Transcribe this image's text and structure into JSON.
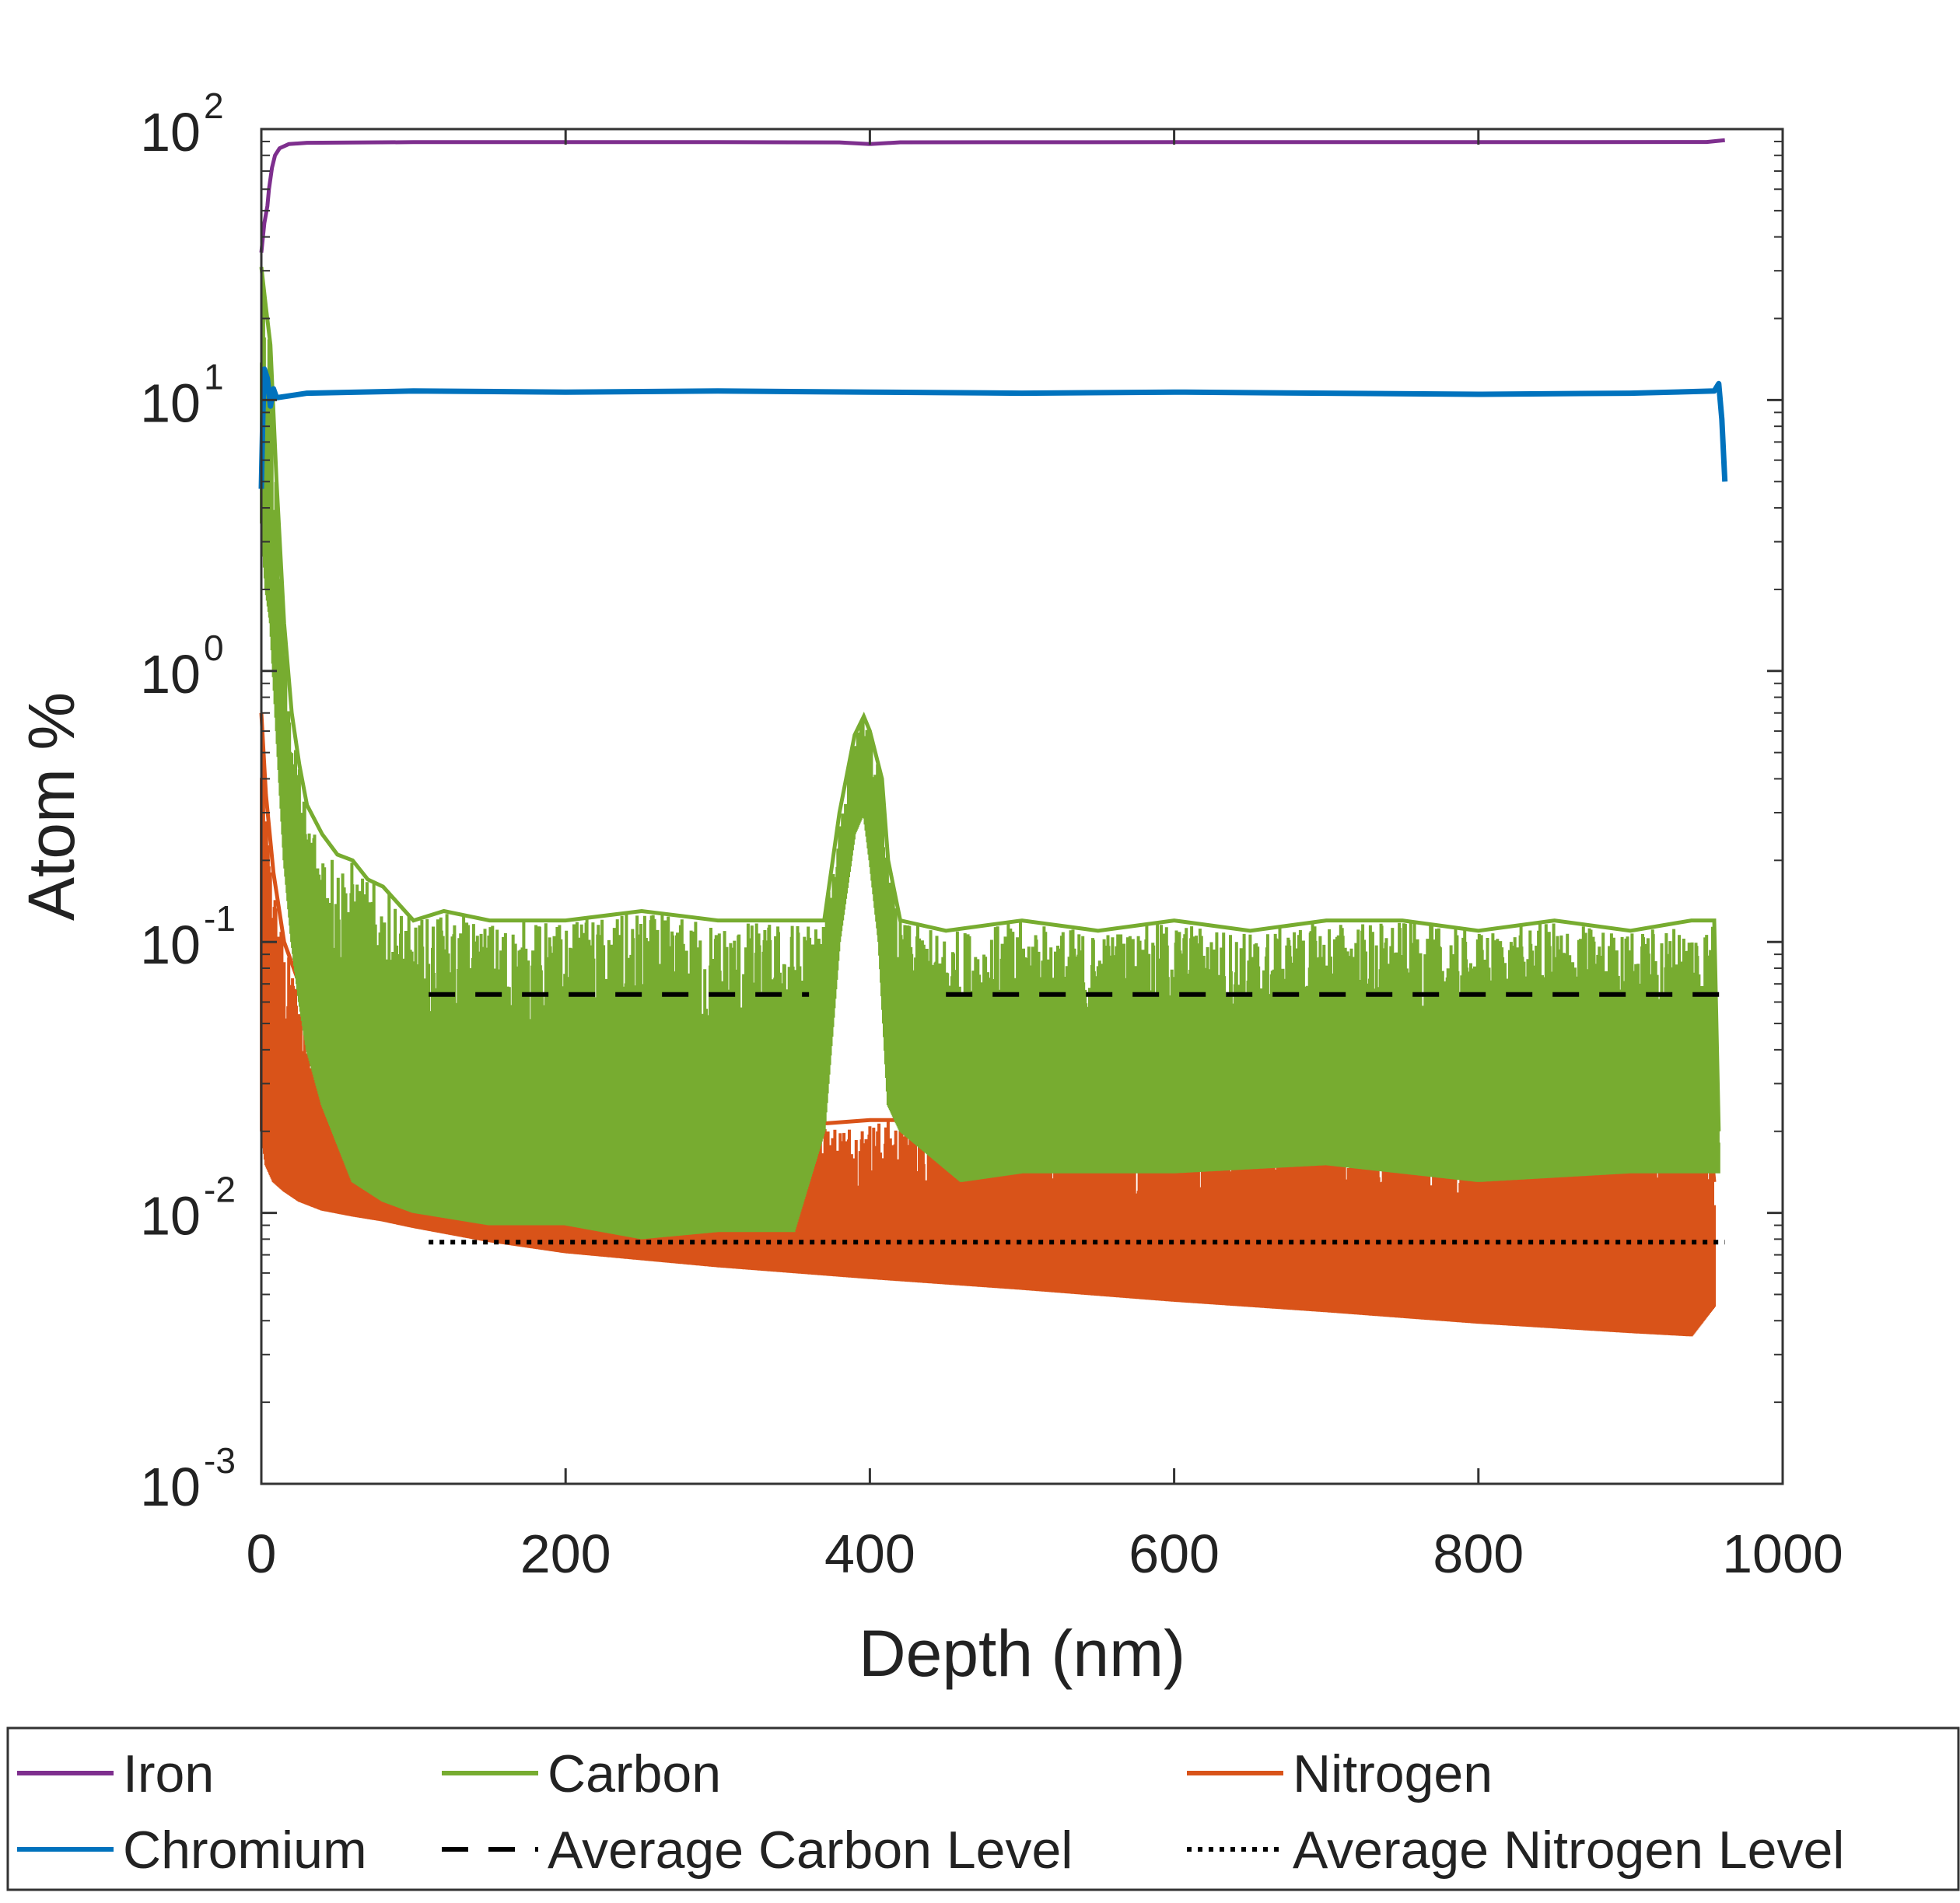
{
  "chart_data": {
    "type": "line",
    "title": "",
    "xlabel": "Depth (nm)",
    "ylabel": "Atom %",
    "xlim": [
      0,
      1000
    ],
    "ylim": [
      0.001,
      100
    ],
    "yscale": "log",
    "x_ticks": [
      0,
      200,
      400,
      600,
      800,
      1000
    ],
    "x_tick_labels": [
      "0",
      "200",
      "400",
      "600",
      "800",
      "1000"
    ],
    "y_ticks": [
      {
        "value": 100,
        "base": "10",
        "exp": "2"
      },
      {
        "value": 10,
        "base": "10",
        "exp": "1"
      },
      {
        "value": 1,
        "base": "10",
        "exp": "0"
      },
      {
        "value": 0.1,
        "base": "10",
        "exp": "-1"
      },
      {
        "value": 0.01,
        "base": "10",
        "exp": "-2"
      },
      {
        "value": 0.001,
        "base": "10",
        "exp": "-3"
      }
    ],
    "grid": false,
    "legend_position": "bottom, outside",
    "series": [
      {
        "name": "Iron",
        "color": "#7E2F8E",
        "style": "solid",
        "points": [
          [
            0,
            35
          ],
          [
            2,
            45
          ],
          [
            4,
            52
          ],
          [
            5,
            60
          ],
          [
            7,
            72
          ],
          [
            9,
            80
          ],
          [
            12,
            85
          ],
          [
            18,
            88
          ],
          [
            30,
            89
          ],
          [
            100,
            89.5
          ],
          [
            300,
            89.5
          ],
          [
            380,
            89.3
          ],
          [
            400,
            88
          ],
          [
            420,
            89.4
          ],
          [
            600,
            89.5
          ],
          [
            800,
            89.5
          ],
          [
            950,
            89.6
          ],
          [
            962,
            91
          ]
        ]
      },
      {
        "name": "Chromium",
        "color": "#0072BD",
        "style": "solid",
        "points": [
          [
            0,
            4.7
          ],
          [
            1,
            9
          ],
          [
            2,
            13
          ],
          [
            4,
            12
          ],
          [
            6,
            9.5
          ],
          [
            8,
            11
          ],
          [
            10,
            10.2
          ],
          [
            30,
            10.6
          ],
          [
            100,
            10.8
          ],
          [
            200,
            10.7
          ],
          [
            300,
            10.8
          ],
          [
            400,
            10.7
          ],
          [
            500,
            10.6
          ],
          [
            600,
            10.7
          ],
          [
            700,
            10.6
          ],
          [
            800,
            10.5
          ],
          [
            900,
            10.6
          ],
          [
            955,
            10.8
          ],
          [
            958,
            11.5
          ],
          [
            960,
            8.5
          ],
          [
            962,
            5
          ]
        ]
      },
      {
        "name": "Carbon",
        "color": "#77AC30",
        "style": "solid",
        "upper": [
          [
            0,
            31
          ],
          [
            3,
            22
          ],
          [
            6,
            16
          ],
          [
            10,
            5
          ],
          [
            15,
            1.5
          ],
          [
            20,
            0.7
          ],
          [
            25,
            0.45
          ],
          [
            30,
            0.32
          ],
          [
            40,
            0.25
          ],
          [
            50,
            0.21
          ],
          [
            60,
            0.2
          ],
          [
            70,
            0.17
          ],
          [
            80,
            0.16
          ],
          [
            100,
            0.12
          ],
          [
            120,
            0.13
          ],
          [
            150,
            0.12
          ],
          [
            200,
            0.12
          ],
          [
            250,
            0.13
          ],
          [
            300,
            0.12
          ],
          [
            350,
            0.12
          ],
          [
            370,
            0.12
          ],
          [
            380,
            0.3
          ],
          [
            390,
            0.58
          ],
          [
            396,
            0.68
          ],
          [
            400,
            0.6
          ],
          [
            408,
            0.4
          ],
          [
            412,
            0.2
          ],
          [
            420,
            0.12
          ],
          [
            450,
            0.11
          ],
          [
            500,
            0.12
          ],
          [
            550,
            0.11
          ],
          [
            600,
            0.12
          ],
          [
            650,
            0.11
          ],
          [
            700,
            0.12
          ],
          [
            750,
            0.12
          ],
          [
            800,
            0.11
          ],
          [
            850,
            0.12
          ],
          [
            900,
            0.11
          ],
          [
            940,
            0.12
          ],
          [
            955,
            0.12
          ],
          [
            958,
            0.02
          ]
        ],
        "lower": [
          [
            0,
            3.5
          ],
          [
            3,
            2
          ],
          [
            6,
            1.5
          ],
          [
            10,
            0.6
          ],
          [
            15,
            0.2
          ],
          [
            20,
            0.1
          ],
          [
            25,
            0.06
          ],
          [
            30,
            0.04
          ],
          [
            40,
            0.025
          ],
          [
            50,
            0.018
          ],
          [
            60,
            0.013
          ],
          [
            80,
            0.011
          ],
          [
            100,
            0.01
          ],
          [
            150,
            0.009
          ],
          [
            200,
            0.009
          ],
          [
            250,
            0.008
          ],
          [
            300,
            0.0085
          ],
          [
            350,
            0.0085
          ],
          [
            370,
            0.02
          ],
          [
            380,
            0.1
          ],
          [
            390,
            0.25
          ],
          [
            396,
            0.3
          ],
          [
            400,
            0.2
          ],
          [
            406,
            0.1
          ],
          [
            412,
            0.025
          ],
          [
            420,
            0.02
          ],
          [
            460,
            0.013
          ],
          [
            500,
            0.014
          ],
          [
            600,
            0.014
          ],
          [
            700,
            0.015
          ],
          [
            800,
            0.013
          ],
          [
            900,
            0.014
          ],
          [
            958,
            0.014
          ]
        ]
      },
      {
        "name": "Nitrogen",
        "color": "#D95319",
        "style": "solid",
        "upper": [
          [
            0,
            0.7
          ],
          [
            3,
            0.35
          ],
          [
            8,
            0.18
          ],
          [
            15,
            0.1
          ],
          [
            25,
            0.07
          ],
          [
            40,
            0.04
          ],
          [
            60,
            0.032
          ],
          [
            80,
            0.025
          ],
          [
            100,
            0.022
          ],
          [
            150,
            0.02
          ],
          [
            200,
            0.02
          ],
          [
            300,
            0.02
          ],
          [
            400,
            0.022
          ],
          [
            500,
            0.022
          ],
          [
            600,
            0.022
          ],
          [
            700,
            0.022
          ],
          [
            800,
            0.023
          ],
          [
            900,
            0.023
          ],
          [
            950,
            0.026
          ],
          [
            955,
            0.013
          ]
        ],
        "lower": [
          [
            0,
            0.02
          ],
          [
            3,
            0.015
          ],
          [
            8,
            0.013
          ],
          [
            15,
            0.012
          ],
          [
            25,
            0.011
          ],
          [
            40,
            0.0102
          ],
          [
            60,
            0.0097
          ],
          [
            80,
            0.0093
          ],
          [
            100,
            0.0088
          ],
          [
            150,
            0.0078
          ],
          [
            200,
            0.0071
          ],
          [
            300,
            0.0063
          ],
          [
            400,
            0.0057
          ],
          [
            500,
            0.0052
          ],
          [
            600,
            0.0047
          ],
          [
            700,
            0.0043
          ],
          [
            800,
            0.0039
          ],
          [
            900,
            0.0036
          ],
          [
            940,
            0.0035
          ],
          [
            955,
            0.0045
          ]
        ]
      },
      {
        "name": "Average Carbon Level",
        "color": "#000000",
        "style": "dashed",
        "segments": [
          [
            [
              110,
              0.064
            ],
            [
              360,
              0.064
            ]
          ],
          [
            [
              450,
              0.064
            ],
            [
              962,
              0.064
            ]
          ]
        ]
      },
      {
        "name": "Average Nitrogen Level",
        "color": "#000000",
        "style": "dotted",
        "points": [
          [
            110,
            0.0078
          ],
          [
            962,
            0.0078
          ]
        ]
      }
    ]
  },
  "legend": {
    "items": [
      {
        "label": "Iron",
        "color": "#7E2F8E",
        "style": "solid"
      },
      {
        "label": "Carbon",
        "color": "#77AC30",
        "style": "solid"
      },
      {
        "label": "Nitrogen",
        "color": "#D95319",
        "style": "solid"
      },
      {
        "label": "Chromium",
        "color": "#0072BD",
        "style": "solid"
      },
      {
        "label": "Average Carbon Level",
        "color": "#000000",
        "style": "dashed"
      },
      {
        "label": "Average Nitrogen Level",
        "color": "#000000",
        "style": "dotted"
      }
    ]
  }
}
